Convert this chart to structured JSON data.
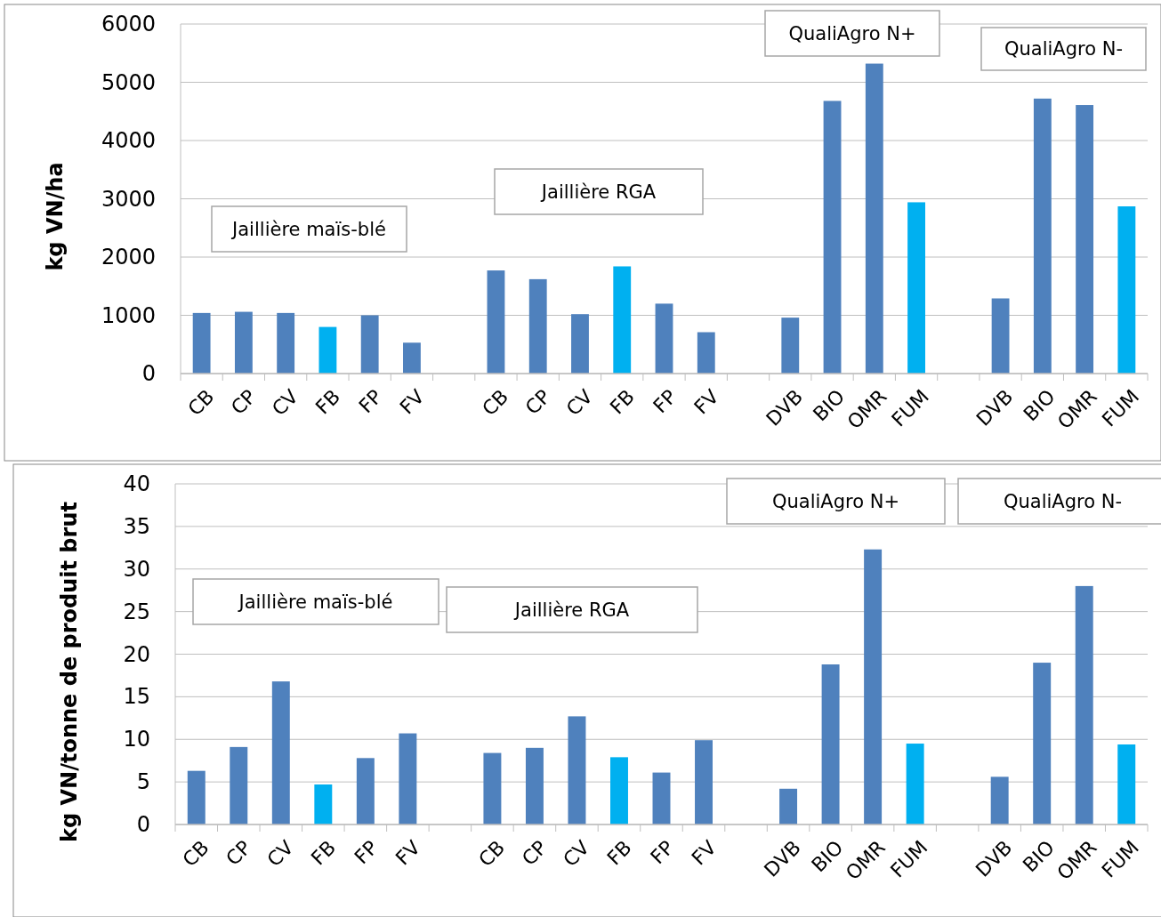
{
  "chart_data": [
    {
      "type": "bar",
      "ylabel": "kg VN/ha",
      "categories": [
        "CB",
        "CP",
        "CV",
        "FB",
        "FP",
        "FV",
        null,
        "CB",
        "CP",
        "CV",
        "FB",
        "FP",
        "FV",
        null,
        "DVB",
        "BIO",
        "OMR",
        "FUM",
        null,
        "DVB",
        "BIO",
        "OMR",
        "FUM"
      ],
      "values": [
        1040,
        1060,
        1040,
        800,
        1000,
        530,
        null,
        1770,
        1620,
        1020,
        1840,
        1200,
        710,
        null,
        960,
        4680,
        5320,
        2940,
        null,
        1290,
        4720,
        4610,
        2870
      ],
      "colors": [
        "#4f81bd",
        "#4f81bd",
        "#4f81bd",
        "#00b0f0",
        "#4f81bd",
        "#4f81bd",
        null,
        "#4f81bd",
        "#4f81bd",
        "#4f81bd",
        "#00b0f0",
        "#4f81bd",
        "#4f81bd",
        null,
        "#4f81bd",
        "#4f81bd",
        "#4f81bd",
        "#00b0f0",
        null,
        "#4f81bd",
        "#4f81bd",
        "#4f81bd",
        "#00b0f0"
      ],
      "ylim": [
        0,
        6000
      ],
      "yticks": [
        0,
        1000,
        2000,
        3000,
        4000,
        5000,
        6000
      ],
      "grid": "y",
      "annotations": [
        "Jaillière maïs-blé",
        "Jaillière RGA",
        "QualiAgro N+",
        "QualiAgro N-"
      ]
    },
    {
      "type": "bar",
      "ylabel": "kg VN/tonne de produit brut",
      "categories": [
        "CB",
        "CP",
        "CV",
        "FB",
        "FP",
        "FV",
        null,
        "CB",
        "CP",
        "CV",
        "FB",
        "FP",
        "FV",
        null,
        "DVB",
        "BIO",
        "OMR",
        "FUM",
        null,
        "DVB",
        "BIO",
        "OMR",
        "FUM"
      ],
      "values": [
        6.3,
        9.1,
        16.8,
        4.7,
        7.8,
        10.7,
        null,
        8.4,
        9.0,
        12.7,
        7.9,
        6.1,
        9.9,
        null,
        4.2,
        18.8,
        32.3,
        9.5,
        null,
        5.6,
        19.0,
        28.0,
        9.4
      ],
      "colors": [
        "#4f81bd",
        "#4f81bd",
        "#4f81bd",
        "#00b0f0",
        "#4f81bd",
        "#4f81bd",
        null,
        "#4f81bd",
        "#4f81bd",
        "#4f81bd",
        "#00b0f0",
        "#4f81bd",
        "#4f81bd",
        null,
        "#4f81bd",
        "#4f81bd",
        "#4f81bd",
        "#00b0f0",
        null,
        "#4f81bd",
        "#4f81bd",
        "#4f81bd",
        "#00b0f0"
      ],
      "ylim": [
        0,
        40
      ],
      "yticks": [
        0,
        5,
        10,
        15,
        20,
        25,
        30,
        35,
        40
      ],
      "grid": "y",
      "annotations": [
        "Jaillière maïs-blé",
        "Jaillière RGA",
        "QualiAgro N+",
        "QualiAgro N-"
      ]
    }
  ]
}
